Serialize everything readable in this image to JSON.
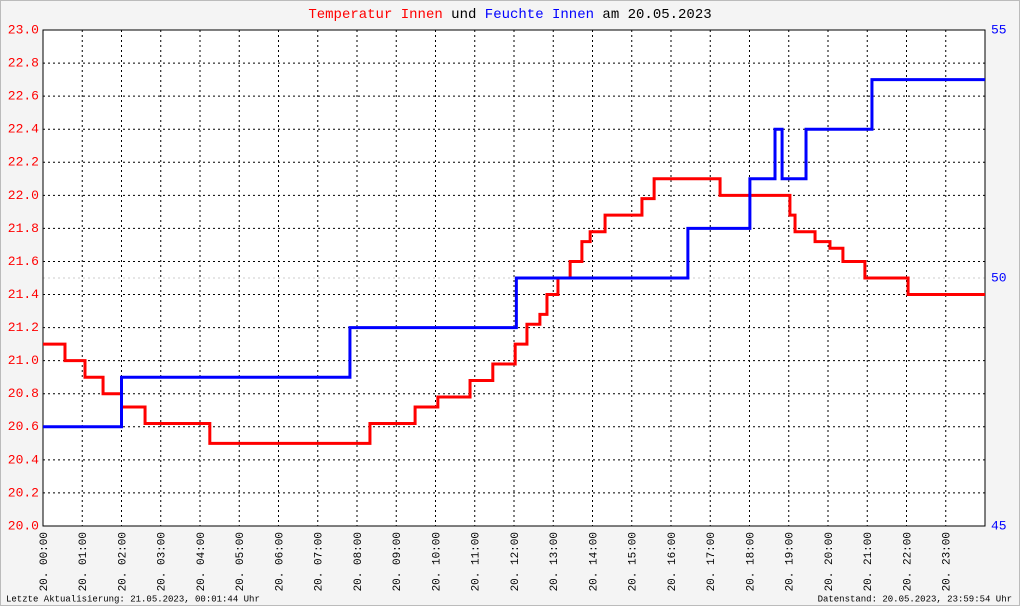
{
  "chart_data": {
    "type": "line",
    "title_parts": [
      {
        "text": "Temperatur Innen",
        "color": "#ff0000"
      },
      {
        "text": "und",
        "color": "#000000"
      },
      {
        "text": "Feuchte Innen",
        "color": "#0000ff"
      },
      {
        "text": "am 20.05.2023",
        "color": "#000000"
      }
    ],
    "footer_left": "Letzte Aktualisierung: 21.05.2023, 00:01:44 Uhr",
    "footer_right": "Datenstand: 20.05.2023, 23:59:54 Uhr",
    "xlim": [
      0,
      24
    ],
    "xticks": [
      {
        "value": 0,
        "label": "20. 00:00"
      },
      {
        "value": 1,
        "label": "20. 01:00"
      },
      {
        "value": 2,
        "label": "20. 02:00"
      },
      {
        "value": 3,
        "label": "20. 03:00"
      },
      {
        "value": 4,
        "label": "20. 04:00"
      },
      {
        "value": 5,
        "label": "20. 05:00"
      },
      {
        "value": 6,
        "label": "20. 06:00"
      },
      {
        "value": 7,
        "label": "20. 07:00"
      },
      {
        "value": 8,
        "label": "20. 08:00"
      },
      {
        "value": 9,
        "label": "20. 09:00"
      },
      {
        "value": 10,
        "label": "20. 10:00"
      },
      {
        "value": 11,
        "label": "20. 11:00"
      },
      {
        "value": 12,
        "label": "20. 12:00"
      },
      {
        "value": 13,
        "label": "20. 13:00"
      },
      {
        "value": 14,
        "label": "20. 14:00"
      },
      {
        "value": 15,
        "label": "20. 15:00"
      },
      {
        "value": 16,
        "label": "20. 16:00"
      },
      {
        "value": 17,
        "label": "20. 17:00"
      },
      {
        "value": 18,
        "label": "20. 18:00"
      },
      {
        "value": 19,
        "label": "20. 19:00"
      },
      {
        "value": 20,
        "label": "20. 20:00"
      },
      {
        "value": 21,
        "label": "20. 21:00"
      },
      {
        "value": 22,
        "label": "20. 22:00"
      },
      {
        "value": 23,
        "label": "20. 23:00"
      }
    ],
    "ylim": [
      20,
      23
    ],
    "yticks": [
      {
        "value": 20,
        "label": "20.0"
      },
      20.2,
      20.4,
      20.6,
      20.8,
      {
        "value": 21,
        "label": "21.0"
      },
      21.2,
      21.4,
      21.6,
      21.8,
      {
        "value": 22,
        "label": "22.0"
      },
      22.2,
      22.4,
      22.6,
      22.8,
      {
        "value": 23,
        "label": "23.0"
      }
    ],
    "y2lim": [
      45,
      55
    ],
    "y2ticks": [
      45,
      50,
      55
    ],
    "grid": true,
    "series": [
      {
        "name": "Temperatur Innen",
        "color": "#ff0000",
        "x": [
          0,
          0.56,
          0.56,
          1.07,
          1.07,
          1.53,
          1.53,
          2.0,
          2.0,
          2.6,
          2.6,
          4.25,
          4.25,
          8.33,
          8.33,
          9.48,
          9.48,
          10.06,
          10.06,
          10.88,
          10.88,
          11.46,
          11.46,
          12.03,
          12.03,
          12.33,
          12.33,
          12.66,
          12.66,
          12.84,
          12.84,
          13.12,
          13.12,
          13.43,
          13.43,
          13.73,
          13.73,
          13.94,
          13.94,
          14.32,
          14.32,
          15.26,
          15.26,
          15.57,
          15.57,
          17.25,
          17.25,
          19.03,
          19.03,
          19.16,
          19.16,
          19.67,
          19.67,
          20.05,
          20.05,
          20.38,
          20.38,
          20.94,
          20.94,
          22.04,
          22.04,
          24
        ],
        "values": [
          21.1,
          21.1,
          21.0,
          21.0,
          20.9,
          20.9,
          20.8,
          20.8,
          20.72,
          20.72,
          20.62,
          20.62,
          20.5,
          20.5,
          20.62,
          20.62,
          20.72,
          20.72,
          20.78,
          20.78,
          20.88,
          20.88,
          20.98,
          20.98,
          21.1,
          21.1,
          21.22,
          21.22,
          21.28,
          21.28,
          21.4,
          21.4,
          21.5,
          21.5,
          21.6,
          21.6,
          21.72,
          21.72,
          21.78,
          21.78,
          21.88,
          21.88,
          21.98,
          21.98,
          22.1,
          22.1,
          22.0,
          22.0,
          21.88,
          21.88,
          21.78,
          21.78,
          21.72,
          21.72,
          21.68,
          21.68,
          21.6,
          21.6,
          21.5,
          21.5,
          21.4,
          21.4
        ]
      },
      {
        "name": "Feuchte Innen",
        "color": "#0000ff",
        "axis": "y2",
        "x": [
          0,
          2.0,
          2.0,
          7.82,
          7.82,
          12.06,
          12.06,
          16.43,
          16.43,
          18.01,
          18.01,
          18.65,
          18.65,
          18.83,
          18.83,
          19.44,
          19.44,
          21.12,
          21.12,
          24
        ],
        "values": [
          47,
          47,
          48,
          48,
          49,
          49,
          50,
          50,
          51,
          51,
          52,
          52,
          53,
          53,
          52,
          52,
          53,
          53,
          54,
          54
        ]
      }
    ]
  }
}
